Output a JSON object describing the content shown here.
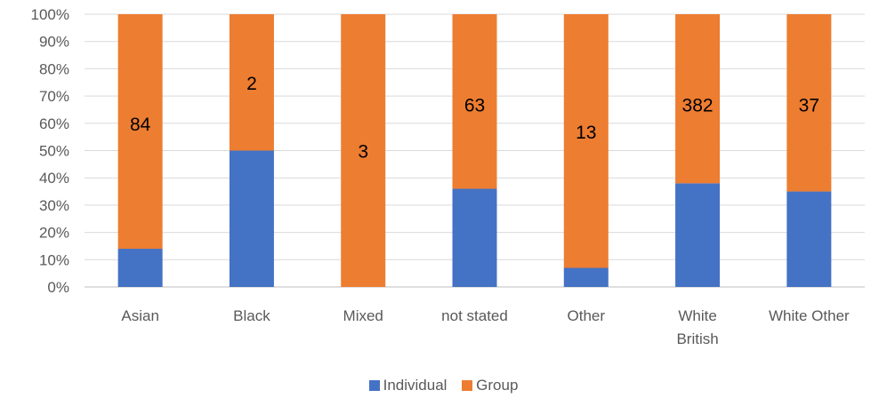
{
  "chart_data": {
    "type": "bar",
    "stacked": "percent",
    "categories": [
      [
        "Asian"
      ],
      [
        "Black"
      ],
      [
        "Mixed"
      ],
      [
        "not stated"
      ],
      [
        "Other"
      ],
      [
        "White",
        "British"
      ],
      [
        "White Other"
      ]
    ],
    "series": [
      {
        "name": "Individual",
        "color": "#4472C4",
        "values": [
          14,
          50,
          0,
          36,
          7,
          38,
          35
        ]
      },
      {
        "name": "Group",
        "color": "#ED7D31",
        "values": [
          86,
          50,
          100,
          64,
          93,
          62,
          65
        ]
      }
    ],
    "data_labels": [
      "84",
      "2",
      "3",
      "63",
      "13",
      "382",
      "37"
    ],
    "data_label_level": [
      60,
      75,
      50,
      67,
      57,
      67,
      67
    ],
    "yticks": [
      "0%",
      "10%",
      "20%",
      "30%",
      "40%",
      "50%",
      "60%",
      "70%",
      "80%",
      "90%",
      "100%"
    ],
    "ylim": [
      0,
      100
    ],
    "grid": true,
    "legend_position": "bottom"
  }
}
